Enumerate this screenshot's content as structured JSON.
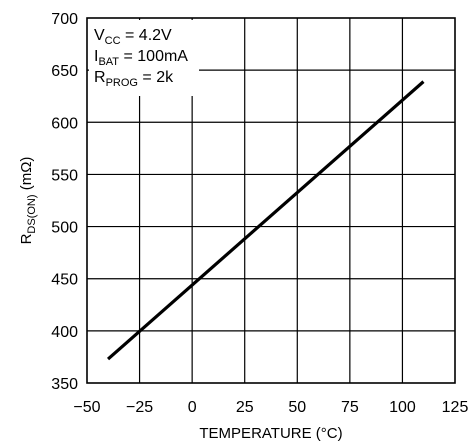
{
  "chart_data": {
    "type": "line",
    "title": "",
    "xlabel": "TEMPERATURE (°C)",
    "ylabel": {
      "main": "R",
      "sub": "DS(ON)",
      "unit": " (mΩ)"
    },
    "xlim": [
      -50,
      125
    ],
    "ylim": [
      350,
      700
    ],
    "xticks": [
      -50,
      -25,
      0,
      25,
      50,
      75,
      100,
      125
    ],
    "yticks": [
      350,
      400,
      450,
      500,
      550,
      600,
      650,
      700
    ],
    "grid": true,
    "colors": {
      "line": "#000000",
      "grid": "#000000",
      "background": "#ffffff"
    },
    "series": [
      {
        "x": [
          -40,
          110
        ],
        "y": [
          373,
          639
        ]
      }
    ],
    "annotations": [
      {
        "main": "V",
        "sub": "CC",
        "rest": " = 4.2V"
      },
      {
        "main": "I",
        "sub": "BAT",
        "rest": " = 100mA"
      },
      {
        "main": "R",
        "sub": "PROG",
        "rest": " = 2k"
      }
    ]
  }
}
